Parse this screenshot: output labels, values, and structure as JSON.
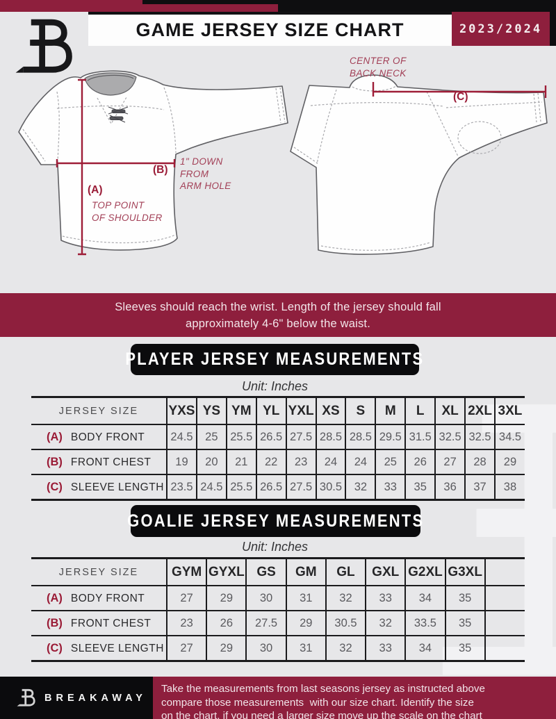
{
  "header": {
    "title": "GAME JERSEY SIZE CHART",
    "season": "2023/2024"
  },
  "diagram": {
    "front": {
      "a_tag": "(A)",
      "a_note_line1": "TOP POINT",
      "a_note_line2": "OF SHOULDER",
      "b_tag": "(B)",
      "b_note_line1": "1\" DOWN",
      "b_note_line2": "FROM",
      "b_note_line3": "ARM HOLE"
    },
    "back": {
      "c_tag": "(C)",
      "neck_note_line1": "CENTER OF",
      "neck_note_line2": "BACK NECK"
    }
  },
  "notice": {
    "line1": "Sleeves should reach the wrist. Length of the jersey should fall",
    "line2": "approximately 4-6\" below the waist."
  },
  "player_table": {
    "title": "PLAYER JERSEY MEASUREMENTS",
    "unit": "Unit: Inches",
    "corner_label": "JERSEY SIZE",
    "columns": [
      "YXS",
      "YS",
      "YM",
      "YL",
      "YXL",
      "XS",
      "S",
      "M",
      "L",
      "XL",
      "2XL",
      "3XL"
    ],
    "rows": [
      {
        "tag": "(A)",
        "label": "BODY FRONT",
        "values": [
          "24.5",
          "25",
          "25.5",
          "26.5",
          "27.5",
          "28.5",
          "28.5",
          "29.5",
          "31.5",
          "32.5",
          "32.5",
          "34.5"
        ]
      },
      {
        "tag": "(B)",
        "label": "FRONT CHEST",
        "values": [
          "19",
          "20",
          "21",
          "22",
          "23",
          "24",
          "24",
          "25",
          "26",
          "27",
          "28",
          "29"
        ]
      },
      {
        "tag": "(C)",
        "label": "SLEEVE LENGTH",
        "values": [
          "23.5",
          "24.5",
          "25.5",
          "26.5",
          "27.5",
          "30.5",
          "32",
          "33",
          "35",
          "36",
          "37",
          "38"
        ]
      }
    ]
  },
  "goalie_table": {
    "title": "GOALIE JERSEY MEASUREMENTS",
    "unit": "Unit: Inches",
    "corner_label": "JERSEY SIZE",
    "columns": [
      "GYM",
      "GYXL",
      "GS",
      "GM",
      "GL",
      "GXL",
      "G2XL",
      "G3XL",
      ""
    ],
    "rows": [
      {
        "tag": "(A)",
        "label": "BODY FRONT",
        "values": [
          "27",
          "29",
          "30",
          "31",
          "32",
          "33",
          "34",
          "35",
          ""
        ]
      },
      {
        "tag": "(B)",
        "label": "FRONT CHEST",
        "values": [
          "23",
          "26",
          "27.5",
          "29",
          "30.5",
          "32",
          "33.5",
          "35",
          ""
        ]
      },
      {
        "tag": "(C)",
        "label": "SLEEVE LENGTH",
        "values": [
          "27",
          "29",
          "30",
          "31",
          "32",
          "33",
          "34",
          "35",
          ""
        ]
      }
    ]
  },
  "footer": {
    "brand": "BREAKAWAY",
    "line1": "Take the measurements from last seasons jersey as instructed above",
    "line2": "compare those measurements  with our size chart. Identify the size",
    "line3": "on the chart, if you need a larger size move up the scale on the chart"
  },
  "colors": {
    "maroon": "#8E1F3D",
    "black": "#0E0E10",
    "page_bg": "#E7E7E9",
    "measurement_line": "#9E1D37"
  }
}
